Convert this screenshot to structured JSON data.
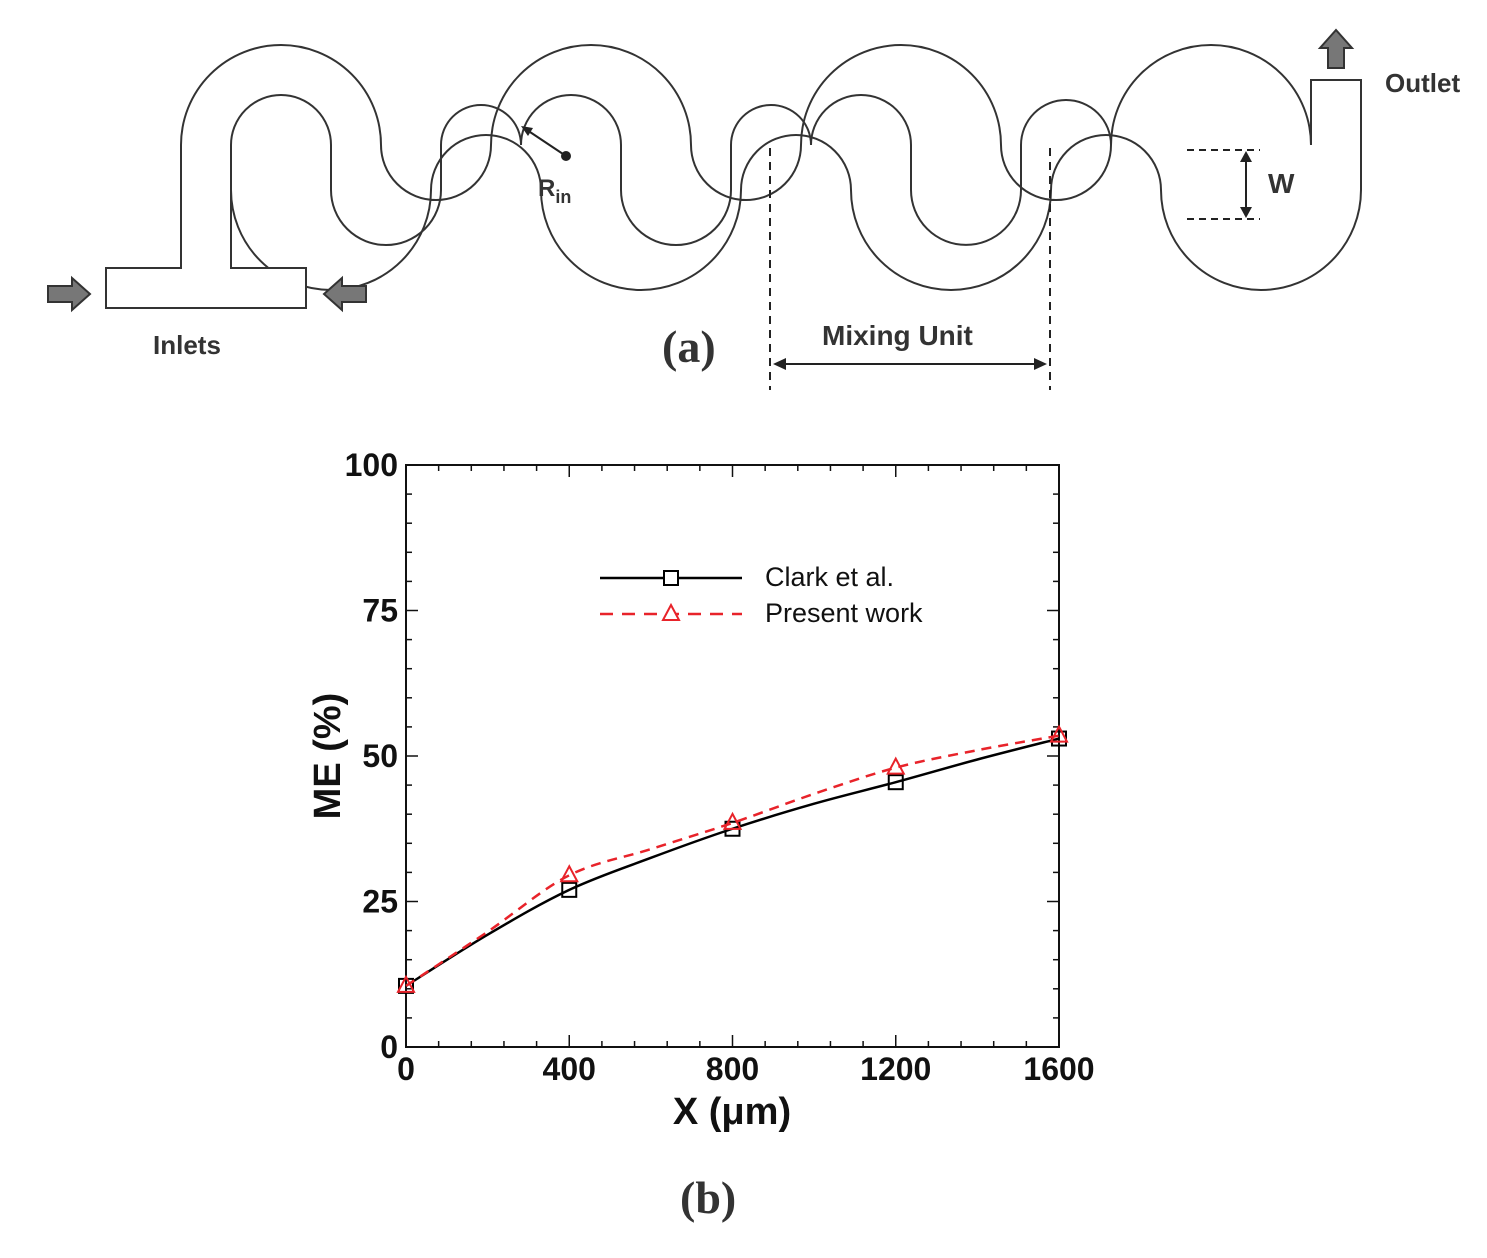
{
  "diagram": {
    "panel_label": "(a)",
    "labels": {
      "outlet": "Outlet",
      "inlets": "Inlets",
      "mixing_unit": "Mixing Unit",
      "width": "W",
      "radius_main": "R",
      "radius_sub": "in"
    }
  },
  "chart_panel_label": "(b)",
  "colors": {
    "series1": "#000000",
    "series2": "#e8232a"
  },
  "chart_data": {
    "type": "line",
    "title": "",
    "xlabel": "X (μm)",
    "ylabel": "ME (%)",
    "xlim": [
      0,
      1600
    ],
    "ylim": [
      0,
      100
    ],
    "xticks": [
      "0",
      "400",
      "800",
      "1200",
      "1600"
    ],
    "yticks": [
      "0",
      "25",
      "50",
      "75",
      "100"
    ],
    "legend_position": "upper-center",
    "series": [
      {
        "name": "Clark et al.",
        "marker": "square",
        "style": "solid",
        "x": [
          0,
          400,
          800,
          1200,
          1600
        ],
        "y": [
          10.5,
          27.0,
          37.5,
          45.5,
          53.0
        ],
        "curve": [
          [
            0,
            10.5
          ],
          [
            200,
            19.3
          ],
          [
            400,
            27.0
          ],
          [
            600,
            32.5
          ],
          [
            800,
            37.5
          ],
          [
            1000,
            41.8
          ],
          [
            1200,
            45.5
          ],
          [
            1400,
            49.4
          ],
          [
            1600,
            53.0
          ]
        ]
      },
      {
        "name": "Present work",
        "marker": "triangle",
        "style": "dashed",
        "x": [
          0,
          400,
          800,
          1200,
          1600
        ],
        "y": [
          10.5,
          29.5,
          38.5,
          48.0,
          53.5
        ],
        "curve": [
          [
            0,
            10.5
          ],
          [
            200,
            19.8
          ],
          [
            400,
            29.5
          ],
          [
            600,
            34.0
          ],
          [
            800,
            38.5
          ],
          [
            1000,
            43.5
          ],
          [
            1200,
            48.0
          ],
          [
            1400,
            51.0
          ],
          [
            1600,
            53.5
          ]
        ]
      }
    ]
  }
}
